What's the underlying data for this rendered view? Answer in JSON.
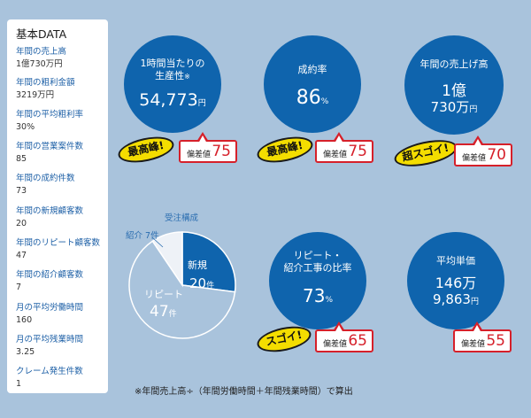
{
  "sidebar": {
    "title": "基本DATA",
    "items": [
      {
        "label": "年間の売上高",
        "value": "1億730万円"
      },
      {
        "label": "年間の粗利金額",
        "value": "3219万円"
      },
      {
        "label": "年間の平均粗利率",
        "value": "30%"
      },
      {
        "label": "年間の営業案件数",
        "value": "85"
      },
      {
        "label": "年間の成約件数",
        "value": "73"
      },
      {
        "label": "年間の新規顧客数",
        "value": "20"
      },
      {
        "label": "年間のリピート顧客数",
        "value": "47"
      },
      {
        "label": "年間の紹介顧客数",
        "value": "7"
      },
      {
        "label": "月の平均労働時間",
        "value": "160"
      },
      {
        "label": "月の平均残業時間",
        "value": "3.25"
      },
      {
        "label": "クレーム発生件数",
        "value": "1"
      }
    ]
  },
  "metrics": {
    "productivity": {
      "title1": "1時間当たりの",
      "title2": "生産性",
      "mark": "※",
      "value": "54,773",
      "unit": "円",
      "badge": "最高峰!",
      "hensachi_label": "偏差値",
      "hensachi": "75"
    },
    "close_rate": {
      "title": "成約率",
      "value": "86",
      "unit": "%",
      "badge": "最高峰!",
      "hensachi_label": "偏差値",
      "hensachi": "75"
    },
    "annual_sales": {
      "title": "年間の売上げ高",
      "line1": "1億",
      "line2": "730万",
      "unit": "円",
      "badge": "超スゴイ!",
      "hensachi_label": "偏差値",
      "hensachi": "70"
    },
    "repeat_ratio": {
      "title1": "リピート・",
      "title2": "紹介工事の比率",
      "value": "73",
      "unit": "%",
      "badge": "スゴイ!",
      "hensachi_label": "偏差値",
      "hensachi": "65"
    },
    "unit_price": {
      "title": "平均単価",
      "line1": "146万",
      "line2": "9,863",
      "unit": "円",
      "hensachi_label": "偏差値",
      "hensachi": "55"
    }
  },
  "chart_data": {
    "type": "pie",
    "title": "受注構成",
    "categories": [
      "新規",
      "リピート",
      "紹介"
    ],
    "values": [
      20,
      47,
      7
    ],
    "unit": "件",
    "colors": [
      "#0f64ad",
      "#a9c3dc",
      "#eef2f7"
    ]
  },
  "footnote": "※年間売上高÷（年間労働時間＋年間残業時間）で算出"
}
